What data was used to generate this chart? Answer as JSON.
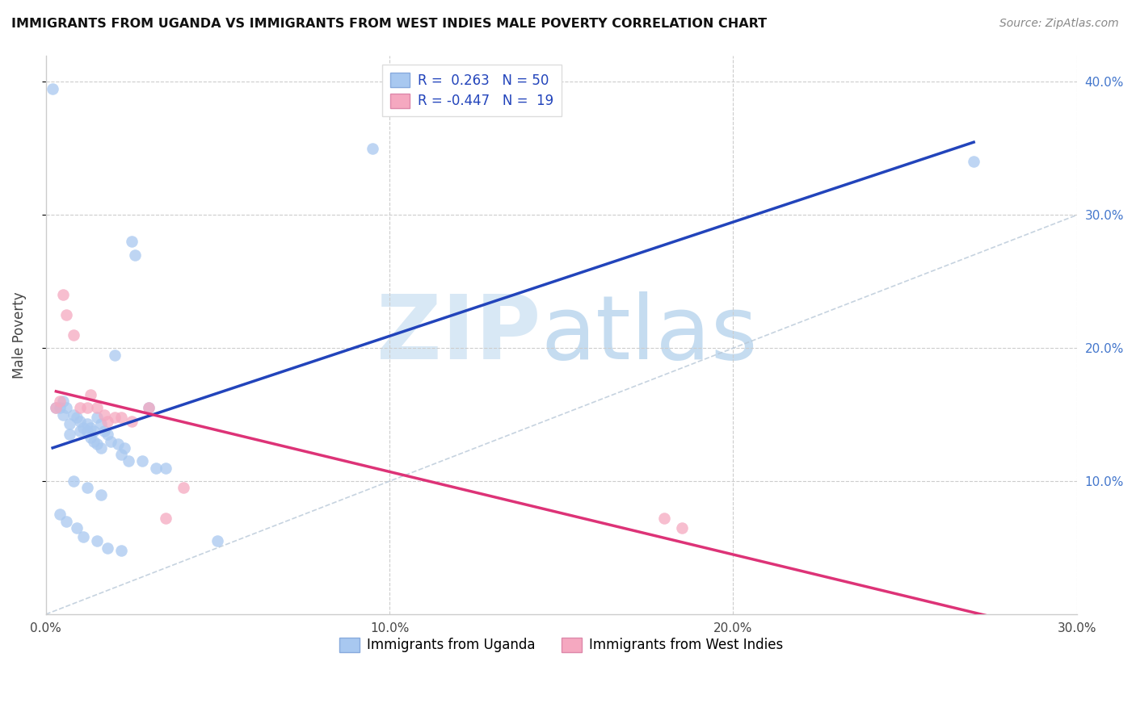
{
  "title": "IMMIGRANTS FROM UGANDA VS IMMIGRANTS FROM WEST INDIES MALE POVERTY CORRELATION CHART",
  "source": "Source: ZipAtlas.com",
  "ylabel": "Male Poverty",
  "xlim": [
    0.0,
    0.3
  ],
  "ylim": [
    0.0,
    0.42
  ],
  "xtick_vals": [
    0.0,
    0.1,
    0.2,
    0.3
  ],
  "xtick_labels": [
    "0.0%",
    "10.0%",
    "20.0%",
    "30.0%"
  ],
  "ytick_vals": [
    0.1,
    0.2,
    0.3,
    0.4
  ],
  "ytick_labels_right": [
    "10.0%",
    "20.0%",
    "30.0%",
    "40.0%"
  ],
  "legend_R_Uganda": "0.263",
  "legend_N_Uganda": "50",
  "legend_R_WestIndies": "-0.447",
  "legend_N_WestIndies": "19",
  "color_uganda": "#A8C8F0",
  "color_westindies": "#F5A8C0",
  "color_line_uganda": "#2244BB",
  "color_line_westindies": "#DD3377",
  "color_diag": "#B8C8D8",
  "uganda_x": [
    0.002,
    0.003,
    0.004,
    0.005,
    0.005,
    0.006,
    0.007,
    0.007,
    0.008,
    0.009,
    0.01,
    0.01,
    0.011,
    0.012,
    0.012,
    0.013,
    0.013,
    0.014,
    0.014,
    0.015,
    0.015,
    0.016,
    0.016,
    0.017,
    0.018,
    0.019,
    0.02,
    0.021,
    0.022,
    0.023,
    0.024,
    0.025,
    0.026,
    0.028,
    0.03,
    0.032,
    0.035,
    0.008,
    0.012,
    0.016,
    0.004,
    0.006,
    0.009,
    0.011,
    0.015,
    0.018,
    0.022,
    0.05,
    0.095,
    0.27
  ],
  "uganda_y": [
    0.395,
    0.155,
    0.155,
    0.16,
    0.15,
    0.155,
    0.143,
    0.135,
    0.15,
    0.148,
    0.145,
    0.138,
    0.14,
    0.143,
    0.138,
    0.14,
    0.133,
    0.138,
    0.13,
    0.148,
    0.128,
    0.143,
    0.125,
    0.138,
    0.135,
    0.13,
    0.195,
    0.128,
    0.12,
    0.125,
    0.115,
    0.28,
    0.27,
    0.115,
    0.155,
    0.11,
    0.11,
    0.1,
    0.095,
    0.09,
    0.075,
    0.07,
    0.065,
    0.058,
    0.055,
    0.05,
    0.048,
    0.055,
    0.35,
    0.34
  ],
  "wi_x": [
    0.003,
    0.004,
    0.005,
    0.006,
    0.008,
    0.01,
    0.012,
    0.013,
    0.015,
    0.017,
    0.018,
    0.02,
    0.022,
    0.025,
    0.03,
    0.035,
    0.04,
    0.18,
    0.185
  ],
  "wi_y": [
    0.155,
    0.16,
    0.24,
    0.225,
    0.21,
    0.155,
    0.155,
    0.165,
    0.155,
    0.15,
    0.145,
    0.148,
    0.148,
    0.145,
    0.155,
    0.072,
    0.095,
    0.072,
    0.065
  ]
}
